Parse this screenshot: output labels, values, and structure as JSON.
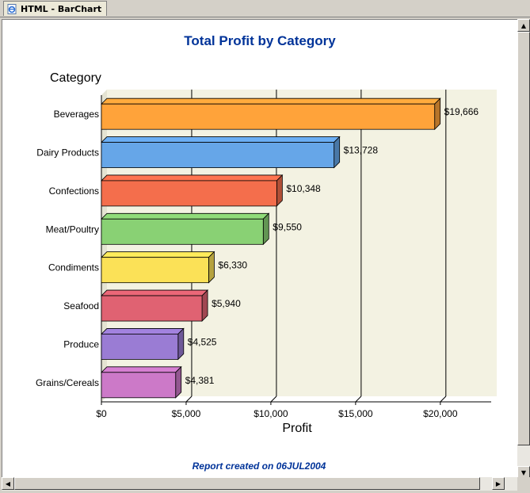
{
  "window": {
    "tab_label": "HTML - BarChart",
    "icon": "ie-page-icon"
  },
  "report": {
    "title": "Total Profit by Category",
    "footer": "Report created on 06JUL2004"
  },
  "colors": {
    "title": "#003399",
    "plot_background": "#f3f2e2"
  },
  "chart_data": {
    "type": "bar",
    "orientation": "horizontal",
    "title": "Total Profit by Category",
    "category_axis_label": "Category",
    "value_axis_label": "Profit",
    "categories": [
      "Beverages",
      "Dairy Products",
      "Confections",
      "Meat/Poultry",
      "Condiments",
      "Seafood",
      "Produce",
      "Grains/Cereals"
    ],
    "values": [
      19666,
      13728,
      10348,
      9550,
      6330,
      5940,
      4525,
      4381
    ],
    "value_labels": [
      "$19,666",
      "$13,728",
      "$10,348",
      "$9,550",
      "$6,330",
      "$5,940",
      "$4,525",
      "$4,381"
    ],
    "bar_colors": [
      "#ffa33a",
      "#66a6e8",
      "#f46e4c",
      "#89d174",
      "#fbe157",
      "#e06272",
      "#9a7cd4",
      "#cc79c8"
    ],
    "xlim": [
      0,
      23000
    ],
    "ticks": [
      0,
      5000,
      10000,
      15000,
      20000
    ],
    "tick_labels": [
      "$0",
      "$5,000",
      "$10,000",
      "$15,000",
      "$20,000"
    ],
    "grid": true,
    "legend": false
  }
}
